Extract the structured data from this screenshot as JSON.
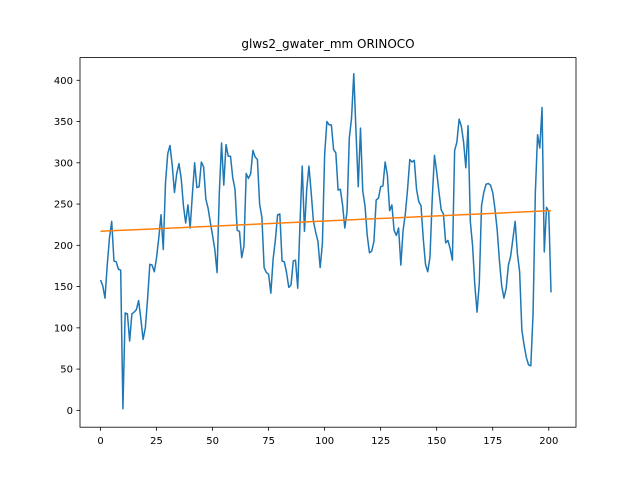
{
  "chart_data": {
    "type": "line",
    "title": "glws2_gwater_mm ORINOCO",
    "xlabel": "",
    "ylabel": "",
    "xlim": [
      -9.15,
      212.15
    ],
    "ylim": [
      -20.4,
      427.5
    ],
    "grid": false,
    "legend": "none",
    "x_ticks": [
      0,
      25,
      50,
      75,
      100,
      125,
      150,
      175,
      200
    ],
    "y_ticks": [
      0,
      50,
      100,
      150,
      200,
      250,
      300,
      350,
      400
    ],
    "series": [
      {
        "color": "#1f77b4",
        "values": [
          158,
          151,
          136,
          176,
          209,
          229,
          181,
          180,
          171,
          170,
          2,
          118,
          117,
          84,
          117,
          119,
          122,
          133,
          111,
          86,
          100,
          135,
          177,
          176,
          168,
          185,
          209,
          237,
          195,
          276,
          311,
          321,
          297,
          264,
          287,
          299,
          281,
          248,
          227,
          249,
          221,
          262,
          300,
          270,
          271,
          301,
          295,
          256,
          245,
          228,
          212,
          195,
          167,
          263,
          324,
          273,
          322,
          308,
          308,
          282,
          268,
          218,
          217,
          185,
          199,
          287,
          281,
          287,
          315,
          307,
          304,
          250,
          234,
          173,
          167,
          165,
          142,
          183,
          206,
          237,
          238,
          181,
          180,
          167,
          149,
          152,
          181,
          182,
          148,
          226,
          296,
          217,
          268,
          296,
          264,
          229,
          216,
          205,
          173,
          202,
          310,
          350,
          346,
          346,
          316,
          312,
          267,
          268,
          249,
          221,
          241,
          330,
          354,
          408,
          337,
          271,
          342,
          266,
          248,
          212,
          191,
          193,
          205,
          255,
          257,
          271,
          272,
          301,
          285,
          242,
          249,
          218,
          212,
          221,
          176,
          218,
          238,
          268,
          304,
          301,
          303,
          268,
          253,
          248,
          208,
          177,
          168,
          186,
          256,
          309,
          289,
          265,
          243,
          238,
          203,
          206,
          196,
          182,
          315,
          325,
          353,
          344,
          325,
          294,
          345,
          229,
          200,
          152,
          119,
          154,
          248,
          264,
          274,
          275,
          273,
          264,
          244,
          218,
          181,
          151,
          136,
          148,
          176,
          187,
          208,
          229,
          190,
          168,
          97,
          79,
          64,
          55,
          54,
          118,
          263,
          334,
          318,
          367,
          192,
          246,
          241,
          143
        ]
      },
      {
        "color": "#ff7f0e",
        "values": [
          217,
          242
        ]
      }
    ]
  }
}
